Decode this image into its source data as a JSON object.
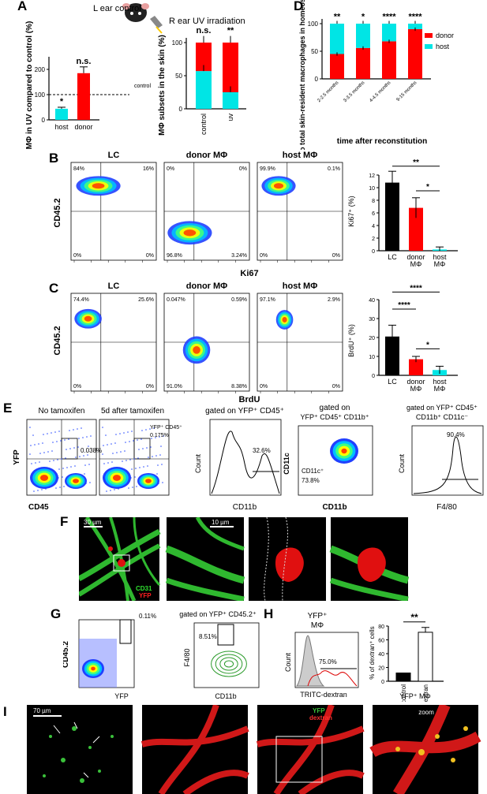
{
  "panels": {
    "A": "A",
    "B": "B",
    "C": "C",
    "D": "D",
    "E": "E",
    "F": "F",
    "G": "G",
    "H": "H",
    "I": "I"
  },
  "A": {
    "mouse_left": "L ear control",
    "mouse_right": "R ear UV irradiation",
    "chart1": {
      "ylabel": "MΦ in UV compared to control (%)",
      "control_label": "control",
      "categories": [
        "host",
        "donor"
      ],
      "values": [
        44,
        185
      ],
      "errors": [
        6,
        25
      ],
      "sig": [
        "*",
        "n.s."
      ],
      "ylim": [
        0,
        250
      ],
      "yticks": [
        "0",
        "100",
        "200"
      ],
      "colors": [
        "#00e5e5",
        "#ff0000"
      ]
    },
    "chart2": {
      "ylabel": "MΦ subsets in the skin (%)",
      "categories": [
        "control",
        "uv"
      ],
      "host": [
        57,
        25
      ],
      "donor": [
        43,
        75
      ],
      "sig": [
        "n.s.",
        "**"
      ],
      "yticks": [
        "0",
        "50",
        "100"
      ]
    }
  },
  "D": {
    "ylabel": "% o total skin-resident macrophages in homeostasis",
    "xlabel": "time after reconstitution",
    "categories": [
      "2-2.5 months",
      "3-3.5 months",
      "4-4.5 months",
      "9-15 months"
    ],
    "donor": [
      45,
      56,
      68,
      90
    ],
    "sig": [
      "**",
      "*",
      "****",
      "****"
    ],
    "legend": [
      "donor",
      "host"
    ],
    "yticks": [
      "0",
      "50",
      "100"
    ]
  },
  "B": {
    "titles": [
      "LC",
      "donor MΦ",
      "host MΦ"
    ],
    "ylabel": "CD45.2",
    "xlabel": "Ki67",
    "quadrants": [
      [
        "84%",
        "16%",
        "0%",
        "0%"
      ],
      [
        "0%",
        "0%",
        "96.8%",
        "3.24%"
      ],
      [
        "99.9%",
        "0.1%",
        "0%",
        "0%"
      ]
    ],
    "bar": {
      "ylabel": "Ki67⁺ (%)",
      "categories": [
        "LC",
        "donor MΦ",
        "host MΦ"
      ],
      "values": [
        10.8,
        6.8,
        0.2
      ],
      "errors": [
        1.8,
        1.6,
        0.4
      ],
      "ylim": [
        0,
        12
      ],
      "yticks": [
        "0",
        "2",
        "4",
        "6",
        "8",
        "10",
        "12"
      ],
      "sig": [
        "**",
        "*"
      ]
    }
  },
  "C": {
    "titles": [
      "LC",
      "donor MΦ",
      "host MΦ"
    ],
    "ylabel": "CD45.2",
    "xlabel": "BrdU",
    "quadrants": [
      [
        "74.4%",
        "25.6%",
        "0%",
        "0%"
      ],
      [
        "0.047%",
        "0.59%",
        "91.0%",
        "8.38%"
      ],
      [
        "97.1%",
        "2.9%",
        "0%",
        "0%"
      ]
    ],
    "bar": {
      "ylabel": "BrdU⁺ (%)",
      "categories": [
        "LC",
        "donor MΦ",
        "host MΦ"
      ],
      "values": [
        20.5,
        8.5,
        2.8
      ],
      "errors": [
        6,
        1.5,
        2
      ],
      "ylim": [
        0,
        40
      ],
      "yticks": [
        "0",
        "10",
        "20",
        "30",
        "40"
      ],
      "sig": [
        "****",
        "****",
        "*"
      ]
    }
  },
  "E": {
    "title1": "No tamoxifen",
    "title2": "5d after tamoxifen",
    "gate1": "0.038%",
    "gate2_label": "YFP⁺ CD45⁺",
    "gate2": "0.175%",
    "ylabel": "YFP",
    "xlabel": "CD45",
    "hist1_title": "gated on YFP⁺ CD45⁺",
    "hist1_pct": "32.6%",
    "hist1_x": "CD11b",
    "count": "Count",
    "dot3_title1": "gated on",
    "dot3_title2": "YFP⁺ CD45⁺ CD11b⁺",
    "dot3_gate": "CD11c⁺",
    "dot3_pct": "73.8%",
    "dot3_y": "CD11c",
    "dot3_x": "CD11b",
    "hist2_title1": "gated on YFP⁺ CD45⁺",
    "hist2_title2": "CD11b⁺ CD11c⁻",
    "hist2_pct": "90.4%",
    "hist2_x": "F4/80"
  },
  "F": {
    "scale1": "30 µm",
    "scale2": "10 µm",
    "legend1": "CD31",
    "legend2": "YFP"
  },
  "G": {
    "ylabel": "CD45.2",
    "xlabel": "YFP",
    "gate": "0.11%",
    "title": "gated on YFP⁺ CD45.2⁺",
    "gate2": "8.51%",
    "ylabel2": "F4/80",
    "xlabel2": "CD11b"
  },
  "H": {
    "title1": "YFP⁺",
    "title2": "MΦ",
    "count": "Count",
    "pct": "75.0%",
    "xlabel": "TRITC-dextran",
    "bar": {
      "ylabel": "% of dextran⁺ cells",
      "categories": [
        "control",
        "dextran"
      ],
      "values": [
        12,
        71
      ],
      "errors": [
        0,
        7
      ],
      "sig": "**",
      "yticks": [
        "0",
        "20",
        "40",
        "60",
        "80"
      ],
      "xlabel": "YFP⁺ MΦ"
    }
  },
  "I": {
    "scale": "70 µm",
    "legend1": "YFP",
    "legend2": "dextran",
    "zoom": "zoom"
  }
}
